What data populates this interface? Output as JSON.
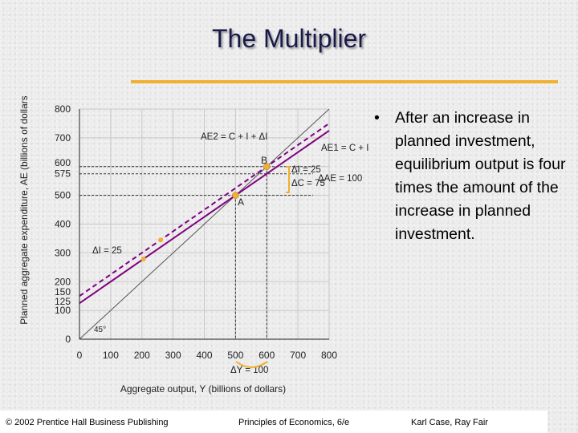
{
  "slide": {
    "title": "The Multiplier",
    "bullet": "After an increase in planned investment, equilibrium output is four times the amount of the increase in planned investment.",
    "bullet_symbol": "•",
    "accent_color": "#f0b030"
  },
  "footer": {
    "left": "© 2002 Prentice Hall Business Publishing",
    "center": "Principles of Economics, 6/e",
    "right": "Karl Case, Ray Fair"
  },
  "chart_data": {
    "type": "line",
    "xlabel": "Aggregate output, Y (billions of dollars)",
    "ylabel": "Planned aggregate expenditure, AE (billions of dollars)",
    "xlim": [
      0,
      800
    ],
    "ylim": [
      0,
      800
    ],
    "x_ticks": [
      "0",
      "100",
      "200",
      "300",
      "400",
      "500",
      "600",
      "700",
      "800"
    ],
    "y_ticks": [
      {
        "value": 0,
        "label": "0"
      },
      {
        "value": 100,
        "label": "100"
      },
      {
        "value": 125,
        "label": "125"
      },
      {
        "value": 150,
        "label": "150"
      },
      {
        "value": 200,
        "label": "200"
      },
      {
        "value": 300,
        "label": "300"
      },
      {
        "value": 400,
        "label": "400"
      },
      {
        "value": 500,
        "label": "500"
      },
      {
        "value": 575,
        "label": "575"
      },
      {
        "value": 600,
        "label": "600"
      },
      {
        "value": 700,
        "label": "700"
      },
      {
        "value": 800,
        "label": "800"
      }
    ],
    "grid": true,
    "series": [
      {
        "name": "45°",
        "x": [
          0,
          800
        ],
        "y": [
          0,
          800
        ],
        "color": "#555555",
        "style": "solid"
      },
      {
        "name": "AE1 = C + I",
        "x": [
          0,
          800
        ],
        "y": [
          125,
          725
        ],
        "color": "#800080",
        "style": "solid"
      },
      {
        "name": "AE2 = C + I + ΔI",
        "x": [
          0,
          800
        ],
        "y": [
          150,
          750
        ],
        "color": "#800080",
        "style": "dashed"
      }
    ],
    "points": [
      {
        "label": "A",
        "x": 500,
        "y": 500
      },
      {
        "label": "B",
        "x": 600,
        "y": 600
      }
    ],
    "annotations": {
      "ae2_label": "AE2 = C + I + ΔI",
      "ae1_label": "AE1 = C + I",
      "angle_label": "45°",
      "delta_i_left": "ΔI = 25",
      "delta_i": "ΔI = 25",
      "delta_c": "ΔC = 75",
      "delta_ae": "ΔAE = 100",
      "delta_y": "ΔY = 100",
      "point_a": "A",
      "point_b": "B"
    },
    "colors": {
      "ae_lines": "#800080",
      "highlight": "#f0b030",
      "grid": "#c8c8c8"
    }
  }
}
